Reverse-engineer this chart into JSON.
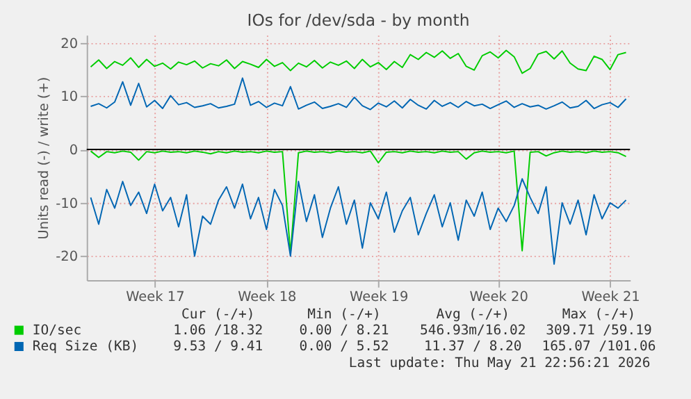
{
  "chart_data": {
    "type": "line",
    "title": "IOs for /dev/sda - by month",
    "ylabel": "Units read (-) / write (+)",
    "categories": [
      null,
      null,
      null,
      null,
      null,
      null,
      null,
      null,
      "Week 17",
      null,
      null,
      null,
      null,
      null,
      null,
      null,
      null,
      null,
      null,
      null,
      null,
      null,
      "Week 18",
      null,
      null,
      null,
      null,
      null,
      null,
      null,
      null,
      null,
      null,
      null,
      null,
      null,
      "Week 19",
      null,
      null,
      null,
      null,
      null,
      null,
      null,
      null,
      null,
      null,
      null,
      null,
      null,
      null,
      "Week 20",
      null,
      null,
      null,
      null,
      null,
      null,
      null,
      null,
      null,
      null,
      null,
      null,
      null,
      "Week 21",
      null,
      null
    ],
    "series": [
      {
        "color": "#00cc00",
        "values": [
          -0.3,
          -1.5,
          -0.4,
          -0.6,
          -0.3,
          -0.5,
          -2.0,
          -0.4,
          -0.6,
          -0.3,
          -0.5,
          -0.4,
          -0.6,
          -0.3,
          -0.5,
          -0.8,
          -0.4,
          -0.6,
          -0.3,
          -0.5,
          -0.4,
          -0.6,
          -0.3,
          -0.5,
          -0.4,
          -19.5,
          -0.6,
          -0.3,
          -0.5,
          -0.4,
          -0.6,
          -0.3,
          -0.5,
          -0.4,
          -0.6,
          -0.3,
          -2.5,
          -0.5,
          -0.4,
          -0.6,
          -0.3,
          -0.5,
          -0.4,
          -0.6,
          -0.3,
          -0.5,
          -0.4,
          -1.8,
          -0.6,
          -0.3,
          -0.5,
          -0.4,
          -0.6,
          -0.3,
          -19.0,
          -0.5,
          -0.4,
          -1.2,
          -0.6,
          -0.3,
          -0.5,
          -0.4,
          -0.6,
          -0.3,
          -0.5,
          -0.4,
          -0.6,
          -1.3
        ]
      },
      {
        "name": "IO/sec",
        "color": "#00cc00",
        "values": [
          15.5,
          16.8,
          15.2,
          16.5,
          15.8,
          17.2,
          15.4,
          16.9,
          15.6,
          16.2,
          15.1,
          16.4,
          15.9,
          16.6,
          15.3,
          16.1,
          15.7,
          16.8,
          15.2,
          16.5,
          16.0,
          15.4,
          16.9,
          15.6,
          16.3,
          14.8,
          16.2,
          15.5,
          16.7,
          15.3,
          16.4,
          15.8,
          16.6,
          15.2,
          16.9,
          15.5,
          16.3,
          15.0,
          16.5,
          15.4,
          17.8,
          16.9,
          18.2,
          17.3,
          18.5,
          17.1,
          18.0,
          15.6,
          14.9,
          17.6,
          18.3,
          17.2,
          18.6,
          17.4,
          14.3,
          15.2,
          17.9,
          18.4,
          17.0,
          18.5,
          16.2,
          15.1,
          14.8,
          17.5,
          16.9,
          15.0,
          17.8,
          18.2
        ]
      },
      {
        "color": "#0066b3",
        "values": [
          -9.0,
          -14.0,
          -7.5,
          -11.0,
          -6.0,
          -10.5,
          -8.0,
          -12.0,
          -6.5,
          -11.5,
          -9.0,
          -14.5,
          -8.5,
          -20.0,
          -12.5,
          -14.0,
          -9.5,
          -7.0,
          -11.0,
          -6.5,
          -13.0,
          -9.0,
          -15.0,
          -7.5,
          -10.5,
          -20.0,
          -6.0,
          -13.5,
          -8.5,
          -16.5,
          -11.0,
          -7.0,
          -14.0,
          -9.5,
          -18.5,
          -10.0,
          -13.0,
          -8.0,
          -15.5,
          -11.5,
          -9.0,
          -16.0,
          -12.0,
          -8.5,
          -14.5,
          -10.0,
          -17.0,
          -9.5,
          -12.5,
          -8.0,
          -15.0,
          -11.0,
          -13.5,
          -10.5,
          -5.5,
          -9.0,
          -12.0,
          -7.0,
          -21.5,
          -10.0,
          -14.0,
          -9.5,
          -16.0,
          -8.5,
          -13.0,
          -10.0,
          -11.0,
          -9.5
        ]
      },
      {
        "name": "Req Size (KB)",
        "color": "#0066b3",
        "values": [
          8.1,
          8.6,
          7.8,
          8.9,
          12.7,
          8.3,
          12.4,
          8.0,
          9.2,
          7.7,
          10.1,
          8.4,
          8.8,
          7.9,
          8.2,
          8.6,
          7.8,
          8.1,
          8.5,
          13.4,
          8.3,
          9.0,
          7.9,
          8.7,
          8.2,
          11.8,
          7.6,
          8.3,
          8.9,
          7.7,
          8.1,
          8.6,
          7.9,
          9.8,
          8.2,
          7.5,
          8.7,
          8.0,
          9.1,
          7.8,
          9.4,
          8.3,
          7.6,
          9.2,
          8.1,
          8.8,
          7.9,
          9.0,
          8.2,
          8.5,
          7.7,
          8.4,
          9.1,
          7.9,
          8.6,
          8.0,
          8.3,
          7.6,
          8.2,
          8.9,
          7.8,
          8.1,
          9.2,
          7.7,
          8.4,
          8.8,
          7.9,
          9.5
        ]
      }
    ],
    "ylim": [
      -24.5,
      21.5
    ],
    "yticks": [
      -20,
      -10,
      0,
      10,
      20
    ],
    "grid": true,
    "legend": "bottom",
    "ref_lines": [
      {
        "axis": "y",
        "value": 0,
        "color": "#000000"
      }
    ],
    "annotations": [
      "Cur (-/+)",
      "Min (-/+)",
      "Avg (-/+)",
      "Max (-/+)",
      "1.06 /18.32",
      "0.00 / 8.21",
      "546.93m/16.02",
      "309.71 /59.19",
      "9.53 / 9.41",
      "0.00 / 5.52",
      "11.37 / 8.20",
      "165.07 /101.06",
      "Last update: Thu May 21 22:56:21 2026"
    ]
  }
}
